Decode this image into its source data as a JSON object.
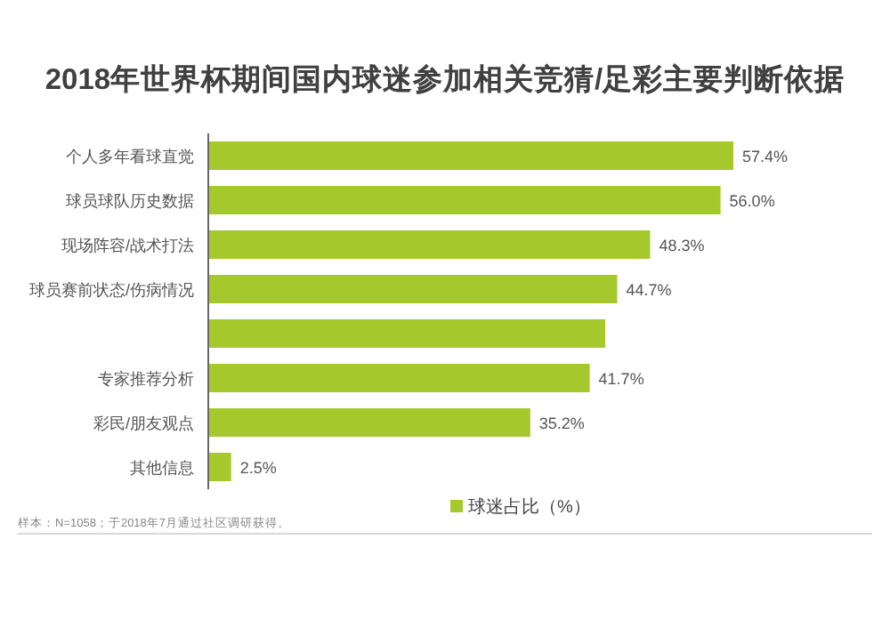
{
  "chart_data": {
    "type": "bar",
    "orientation": "horizontal",
    "title": "2018年世界杯期间国内球迷参加相关竞猜/足彩主要判断依据",
    "categories": [
      "个人多年看球直觉",
      "球员球队历史数据",
      "现场阵容/战术打法",
      "球员赛前状态/伤病情况",
      null,
      "专家推荐分析",
      "彩民/朋友观点",
      "其他信息"
    ],
    "series": [
      {
        "name": "球迷占比（%）",
        "color": "#a5c92d",
        "values": [
          57.4,
          56.0,
          48.3,
          44.7,
          43.4,
          41.7,
          35.2,
          2.5
        ],
        "value_labels": [
          "57.4%",
          "56.0%",
          "48.3%",
          "44.7%",
          null,
          "41.7%",
          "35.2%",
          "2.5%"
        ]
      }
    ],
    "tick_labels": "y",
    "legend": "bottom",
    "annotations": [
      "样本：N=1058；于2018年7月通过社区调研获得。"
    ]
  }
}
